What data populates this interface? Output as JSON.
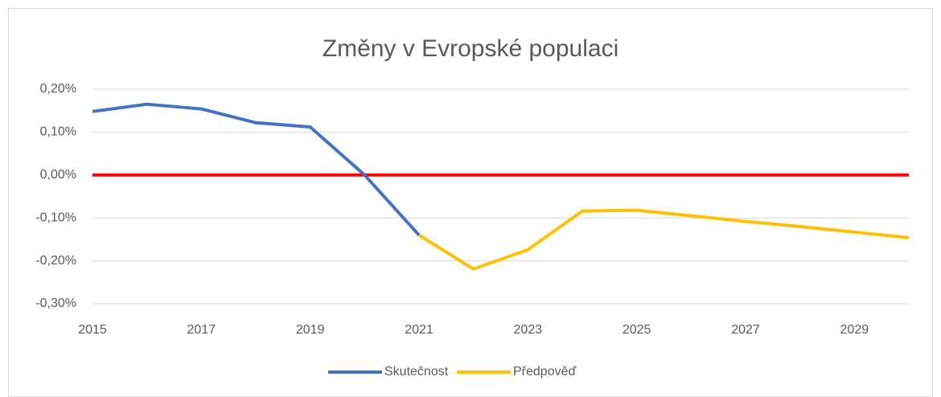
{
  "chart_data": {
    "type": "line",
    "title": "Změny v Evropské populaci",
    "x": [
      2015,
      2016,
      2017,
      2018,
      2019,
      2020,
      2021,
      2022,
      2023,
      2024,
      2025,
      2026,
      2027,
      2028,
      2029,
      2030
    ],
    "series": [
      {
        "name": "Skutečnost",
        "color": "#4472c4",
        "values": [
          0.148,
          0.165,
          0.154,
          0.122,
          0.112,
          0.0,
          -0.14,
          null,
          null,
          null,
          null,
          null,
          null,
          null,
          null,
          null
        ]
      },
      {
        "name": "Předpověď",
        "color": "#ffc000",
        "values": [
          null,
          null,
          null,
          null,
          null,
          null,
          -0.14,
          -0.219,
          -0.174,
          -0.084,
          -0.082,
          -0.095,
          -0.108,
          -0.12,
          -0.133,
          -0.146
        ]
      }
    ],
    "zero_line": {
      "value": 0,
      "color": "#ff0000"
    },
    "xlim": [
      2015,
      2030
    ],
    "xticks": [
      2015,
      2017,
      2019,
      2021,
      2023,
      2025,
      2027,
      2029
    ],
    "ylim": [
      -0.3,
      0.2
    ],
    "yticks": [
      {
        "value": -0.3,
        "label": "-0,30%"
      },
      {
        "value": -0.2,
        "label": "-0,20%"
      },
      {
        "value": -0.1,
        "label": "-0,10%"
      },
      {
        "value": 0,
        "label": "0,00%"
      },
      {
        "value": 0.1,
        "label": "0,10%"
      },
      {
        "value": 0.2,
        "label": "0,20%"
      }
    ],
    "grid": true,
    "legend": "bottom"
  }
}
